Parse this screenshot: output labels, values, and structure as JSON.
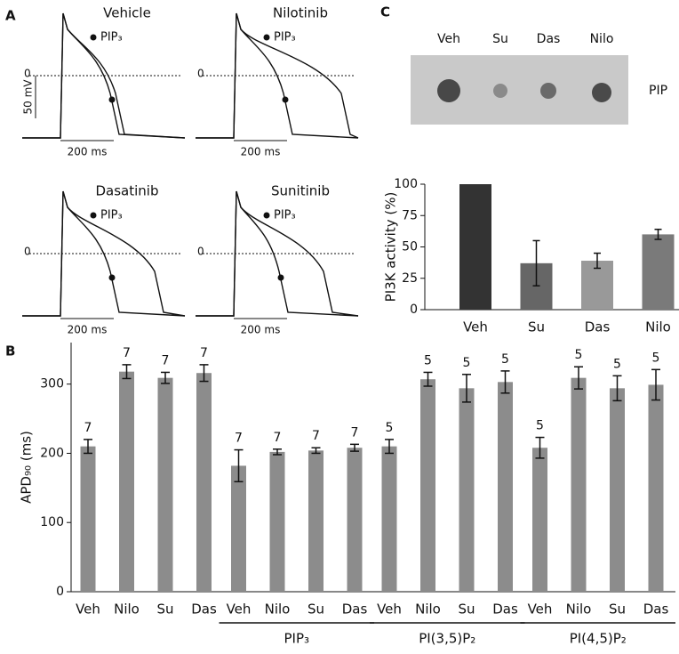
{
  "panel_labels": [
    "A",
    "B",
    "C"
  ],
  "panel_a": {
    "traces": [
      "Vehicle",
      "Nilotinib",
      "Dasatinib",
      "Sunitinib"
    ],
    "legend": "PIP₃",
    "zero": "0",
    "scale_v": "50 mV",
    "scale_t": "200 ms"
  },
  "blot": {
    "lanes": [
      "Veh",
      "Su",
      "Das",
      "Nilo"
    ],
    "band_label": "PIP"
  },
  "chart_data": [
    {
      "type": "bar",
      "y_label": "PI3K activity (%)",
      "categories": [
        "Veh",
        "Su",
        "Das",
        "Nilo"
      ],
      "values": [
        100,
        37,
        39,
        60
      ],
      "errors": [
        0,
        18,
        6,
        4
      ],
      "colors": [
        "#333333",
        "#666666",
        "#999999",
        "#7a7a7a"
      ],
      "ylim": [
        0,
        100
      ],
      "yticks": [
        0,
        25,
        50,
        75,
        100
      ]
    },
    {
      "type": "bar",
      "y_label": "APD₉₀ (ms)",
      "categories": [
        "Veh",
        "Nilo",
        "Su",
        "Das",
        "Veh",
        "Nilo",
        "Su",
        "Das",
        "Veh",
        "Nilo",
        "Su",
        "Das",
        "Veh",
        "Nilo",
        "Su",
        "Das"
      ],
      "values": [
        210,
        318,
        309,
        316,
        182,
        202,
        204,
        208,
        210,
        307,
        294,
        303,
        208,
        309,
        294,
        299
      ],
      "errors": [
        10,
        10,
        8,
        12,
        23,
        4,
        4,
        5,
        10,
        10,
        20,
        16,
        15,
        16,
        18,
        22
      ],
      "n": [
        7,
        7,
        7,
        7,
        7,
        7,
        7,
        7,
        5,
        5,
        5,
        5,
        5,
        5,
        5,
        5
      ],
      "group_labels": [
        "PIP₃",
        "PI(3,5)P₂",
        "PI(4,5)P₂"
      ],
      "color": "#8c8c8c",
      "ylim": [
        0,
        360
      ],
      "yticks": [
        0,
        100,
        200,
        300
      ]
    }
  ]
}
